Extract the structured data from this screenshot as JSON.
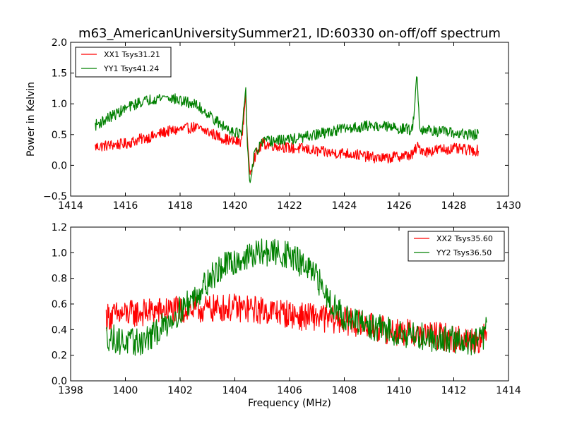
{
  "title": "m63_AmericanUniversitySummer21, ID:60330 on-off/off spectrum",
  "xlabel": "Frequency (MHz)",
  "ylabel": "Power in Kelvin",
  "colors": {
    "xx": "#ff0000",
    "yy": "#008000"
  },
  "chart_data": [
    {
      "type": "line",
      "xlim": [
        1414,
        1430
      ],
      "ylim": [
        -0.5,
        2.0
      ],
      "xticks": [
        1414,
        1416,
        1418,
        1420,
        1422,
        1424,
        1426,
        1428,
        1430
      ],
      "yticks": [
        -0.5,
        0.0,
        0.5,
        1.0,
        1.5,
        2.0
      ],
      "xtick_labels": [
        "1414",
        "1416",
        "1418",
        "1420",
        "1422",
        "1424",
        "1426",
        "1428",
        "1430"
      ],
      "ytick_labels": [
        "−0.5",
        "0.0",
        "0.5",
        "1.0",
        "1.5",
        "2.0"
      ],
      "legend": "top-left",
      "grid": false,
      "series": [
        {
          "name": "XX1 Tsys31.21",
          "color": "#ff0000",
          "x": [
            1414.9,
            1415.5,
            1416.0,
            1416.5,
            1417.0,
            1417.5,
            1418.0,
            1418.5,
            1419.0,
            1419.5,
            1420.0,
            1420.25,
            1420.4,
            1420.45,
            1420.55,
            1420.7,
            1421.0,
            1421.5,
            1422.0,
            1422.5,
            1423.0,
            1423.5,
            1424.0,
            1424.5,
            1425.0,
            1425.5,
            1426.0,
            1426.5,
            1426.65,
            1427.0,
            1427.5,
            1428.0,
            1428.5,
            1428.9
          ],
          "y": [
            0.3,
            0.33,
            0.35,
            0.42,
            0.47,
            0.55,
            0.58,
            0.62,
            0.55,
            0.45,
            0.38,
            0.4,
            1.15,
            0.5,
            -0.15,
            0.12,
            0.35,
            0.32,
            0.28,
            0.27,
            0.23,
            0.2,
            0.2,
            0.17,
            0.13,
            0.11,
            0.15,
            0.17,
            0.3,
            0.22,
            0.26,
            0.27,
            0.25,
            0.24
          ]
        },
        {
          "name": "YY1 Tsys41.24",
          "color": "#008000",
          "x": [
            1414.9,
            1415.5,
            1416.0,
            1416.5,
            1417.0,
            1417.5,
            1418.0,
            1418.5,
            1419.0,
            1419.5,
            1420.0,
            1420.25,
            1420.4,
            1420.45,
            1420.55,
            1420.7,
            1421.0,
            1421.5,
            1422.0,
            1422.5,
            1423.0,
            1423.5,
            1424.0,
            1424.5,
            1425.0,
            1425.5,
            1426.0,
            1426.5,
            1426.65,
            1426.75,
            1427.0,
            1427.5,
            1428.0,
            1428.5,
            1428.9
          ],
          "y": [
            0.65,
            0.8,
            0.92,
            1.02,
            1.08,
            1.12,
            1.05,
            1.0,
            0.85,
            0.65,
            0.55,
            0.5,
            1.25,
            0.4,
            -0.32,
            0.15,
            0.38,
            0.4,
            0.42,
            0.45,
            0.5,
            0.55,
            0.6,
            0.62,
            0.65,
            0.63,
            0.6,
            0.58,
            1.52,
            0.6,
            0.58,
            0.55,
            0.52,
            0.5,
            0.5
          ]
        }
      ]
    },
    {
      "type": "line",
      "xlim": [
        1398,
        1414
      ],
      "ylim": [
        0.0,
        1.2
      ],
      "xticks": [
        1398,
        1400,
        1402,
        1404,
        1406,
        1408,
        1410,
        1412,
        1414
      ],
      "yticks": [
        0.0,
        0.2,
        0.4,
        0.6,
        0.8,
        1.0,
        1.2
      ],
      "xtick_labels": [
        "1398",
        "1400",
        "1402",
        "1404",
        "1406",
        "1408",
        "1410",
        "1412",
        "1414"
      ],
      "ytick_labels": [
        "0.0",
        "0.2",
        "0.4",
        "0.6",
        "0.8",
        "1.0",
        "1.2"
      ],
      "legend": "top-right",
      "grid": false,
      "series": [
        {
          "name": "XX2 Tsys35.60",
          "color": "#ff0000",
          "x": [
            1399.3,
            1400.0,
            1400.5,
            1401.0,
            1401.5,
            1402.0,
            1402.5,
            1403.0,
            1403.5,
            1404.0,
            1404.5,
            1405.0,
            1405.5,
            1406.0,
            1406.5,
            1407.0,
            1407.5,
            1408.0,
            1408.5,
            1409.0,
            1409.5,
            1410.0,
            1410.5,
            1411.0,
            1411.5,
            1412.0,
            1412.5,
            1413.0,
            1413.2
          ],
          "y": [
            0.5,
            0.52,
            0.53,
            0.54,
            0.55,
            0.55,
            0.56,
            0.56,
            0.57,
            0.57,
            0.56,
            0.55,
            0.54,
            0.52,
            0.5,
            0.5,
            0.48,
            0.47,
            0.45,
            0.42,
            0.4,
            0.38,
            0.37,
            0.36,
            0.35,
            0.33,
            0.32,
            0.33,
            0.35
          ]
        },
        {
          "name": "YY2 Tsys36.50",
          "color": "#008000",
          "x": [
            1399.3,
            1400.0,
            1400.5,
            1401.0,
            1401.5,
            1402.0,
            1402.5,
            1403.0,
            1403.5,
            1404.0,
            1404.5,
            1405.0,
            1405.5,
            1406.0,
            1406.5,
            1407.0,
            1407.5,
            1408.0,
            1408.5,
            1409.0,
            1409.5,
            1410.0,
            1410.5,
            1411.0,
            1411.5,
            1412.0,
            1412.5,
            1413.0,
            1413.2
          ],
          "y": [
            0.35,
            0.3,
            0.3,
            0.35,
            0.45,
            0.55,
            0.65,
            0.78,
            0.88,
            0.93,
            0.97,
            1.0,
            1.0,
            0.98,
            0.9,
            0.8,
            0.62,
            0.5,
            0.45,
            0.42,
            0.4,
            0.38,
            0.36,
            0.34,
            0.33,
            0.32,
            0.3,
            0.32,
            0.4
          ]
        }
      ]
    }
  ]
}
